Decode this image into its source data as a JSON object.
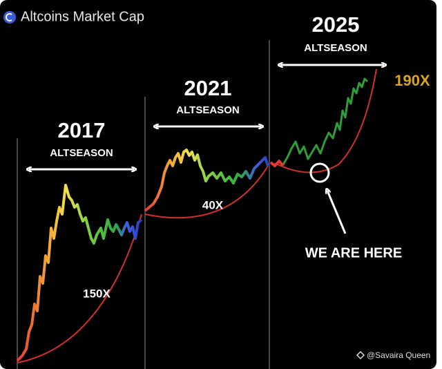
{
  "header": {
    "title": "Altcoins Market Cap"
  },
  "cycles": [
    {
      "year": "2017",
      "label": "ALTSEASON",
      "multiplier": "150X"
    },
    {
      "year": "2021",
      "label": "ALTSEASON",
      "multiplier": "40X"
    },
    {
      "year": "2025",
      "label": "ALTSEASON",
      "multiplier": "190X"
    }
  ],
  "annotation": "WE ARE HERE",
  "watermark": "@Savaira Queen"
}
